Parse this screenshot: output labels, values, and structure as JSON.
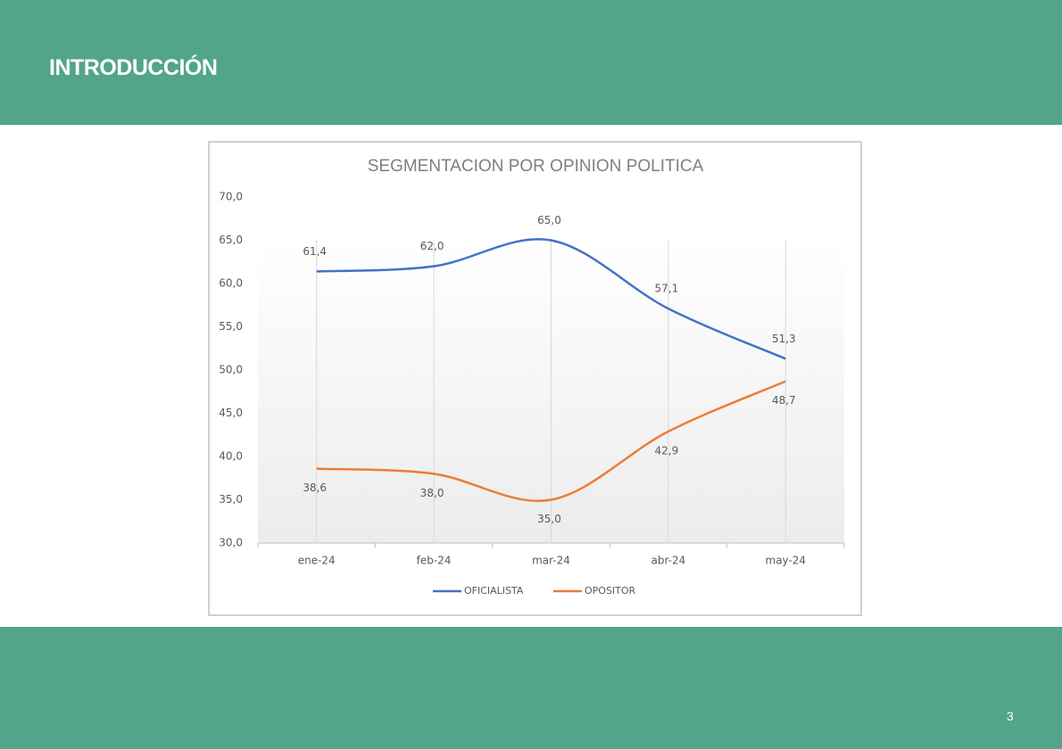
{
  "header": {
    "title": "INTRODUCCIÓN"
  },
  "footer": {
    "page": 3
  },
  "chart_data": {
    "type": "line",
    "title": "SEGMENTACION POR OPINION POLITICA",
    "categories": [
      "ene-24",
      "feb-24",
      "mar-24",
      "abr-24",
      "may-24"
    ],
    "series": [
      {
        "name": "OFICIALISTA",
        "color": "#4472c4",
        "values": [
          61.4,
          62.0,
          65.0,
          57.1,
          51.3
        ],
        "value_labels": [
          "61,4",
          "62,0",
          "65,0",
          "57,1",
          "51,3"
        ]
      },
      {
        "name": "OPOSITOR",
        "color": "#ed7d31",
        "values": [
          38.6,
          38.0,
          35.0,
          42.9,
          48.7
        ],
        "value_labels": [
          "38,6",
          "38,0",
          "35,0",
          "42,9",
          "48,7"
        ]
      }
    ],
    "ylim": [
      30,
      70
    ],
    "yticks": [
      {
        "value": 30,
        "label": "30,0"
      },
      {
        "value": 35,
        "label": "35,0"
      },
      {
        "value": 40,
        "label": "40,0"
      },
      {
        "value": 45,
        "label": "45,0"
      },
      {
        "value": 50,
        "label": "50,0"
      },
      {
        "value": 55,
        "label": "55,0"
      },
      {
        "value": 60,
        "label": "60,0"
      },
      {
        "value": 65,
        "label": "65,0"
      },
      {
        "value": 70,
        "label": "70,0"
      }
    ],
    "smooth": true,
    "legend": "bottom"
  }
}
